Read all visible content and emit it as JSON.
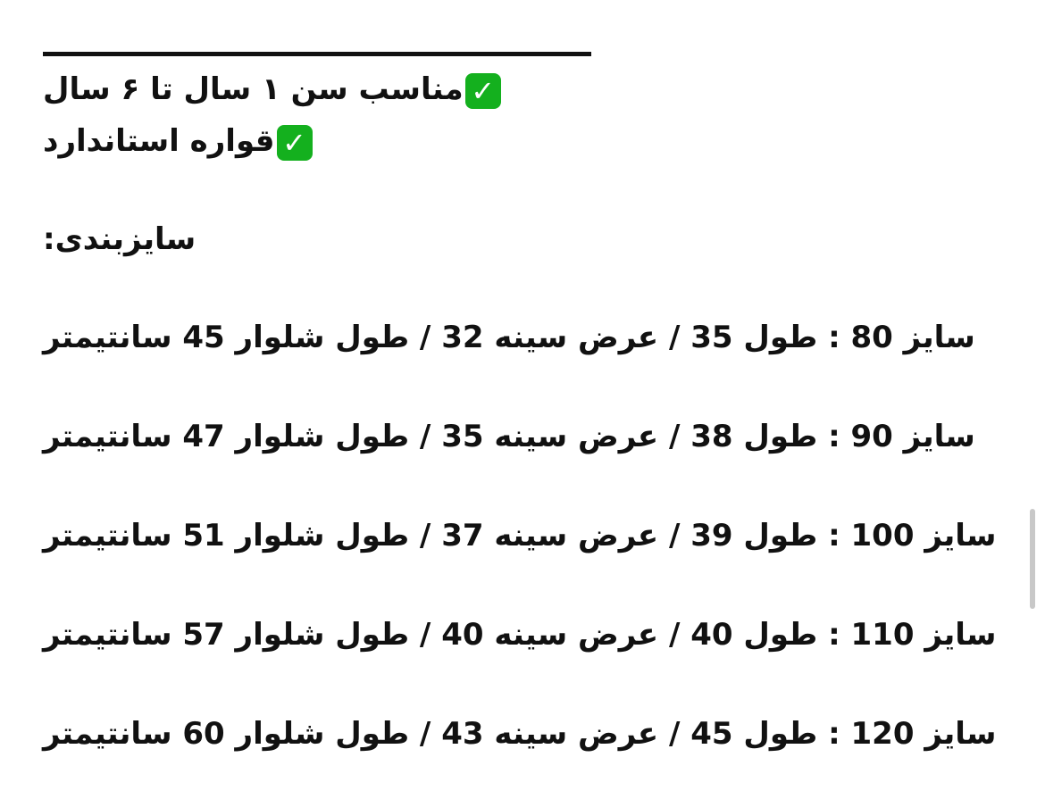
{
  "features": [
    {
      "icon": "check-mark-button-icon",
      "text": "مناسب سن ۱  سال تا ۶  سال"
    },
    {
      "icon": "check-mark-button-icon",
      "text": "قواره استاندارد"
    }
  ],
  "sizing_heading": "سایزبندی:",
  "sizes": [
    "سایز 80 : طول 35 / عرض سینه 32 / طول شلوار 45 سانتیمتر",
    "سایز 90 : طول 38 / عرض سینه 35 / طول شلوار 47 سانتیمتر",
    "سایز 100 : طول 39 / عرض سینه 37 / طول شلوار 51 سانتیمتر",
    "سایز 110 : طول 40 / عرض سینه 40 / طول شلوار 57 سانتیمتر",
    "سایز 120 : طول 45 / عرض سینه 43 / طول شلوار 60 سانتیمتر"
  ],
  "check_glyph": "✓",
  "colors": {
    "check_bg": "#14b01e",
    "text": "#111111"
  }
}
